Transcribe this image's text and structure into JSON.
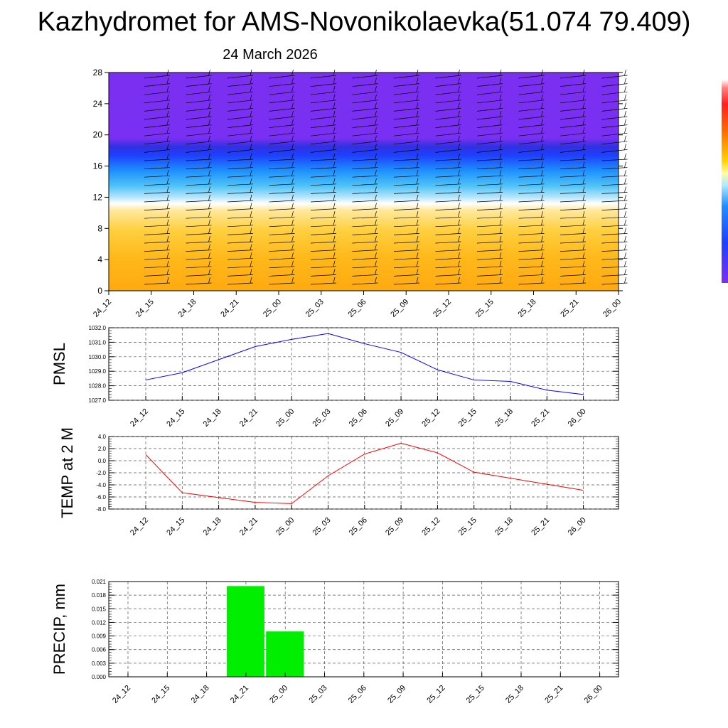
{
  "title": "Kazhydromet for AMS-Novonikolaevka(51.074 79.409)",
  "subtitle": "24 March 2026",
  "colors": {
    "pmsl_line": "#0000ff",
    "temp_line": "#ff0000",
    "precip_bar": "#00ee00",
    "cross_section_top": "#8a2be2",
    "cross_section_mid": "#1e90ff",
    "cross_section_bottom": "#ffa500"
  },
  "chart_data": [
    {
      "type": "heatmap",
      "name": "vertical cross-section with wind barbs",
      "title": "",
      "xlabel": "",
      "ylabel": "",
      "x_ticks": [
        "24_12",
        "24_15",
        "24_18",
        "24_21",
        "25_00",
        "25_03",
        "25_06",
        "25_09",
        "25_12",
        "25_15",
        "25_18",
        "25_21",
        "26_00"
      ],
      "y_ticks": [
        "0",
        "4",
        "8",
        "12",
        "16",
        "20",
        "24",
        "28"
      ],
      "ylim": [
        0,
        28
      ],
      "bands": [
        {
          "from": 0,
          "to": 10.5,
          "color": "#ffa500"
        },
        {
          "from": 10.5,
          "to": 12,
          "color": "#fff3c0"
        },
        {
          "from": 12,
          "to": 18.5,
          "color": "#1e90ff"
        },
        {
          "from": 18.5,
          "to": 28,
          "color": "#8a2be2"
        }
      ],
      "wind_barbs": true
    },
    {
      "type": "line",
      "ylabel": "PMSL",
      "x": [
        "24_12",
        "24_15",
        "24_18",
        "24_21",
        "25_00",
        "25_03",
        "25_06",
        "25_09",
        "25_12",
        "25_15",
        "25_18",
        "25_21",
        "26_00"
      ],
      "y_ticks": [
        "1027.0",
        "1028.0",
        "1029.0",
        "1030.0",
        "1031.0",
        "1032.0"
      ],
      "ylim": [
        1027.0,
        1032.0
      ],
      "series": [
        {
          "values": [
            1028.4,
            1028.9,
            1029.8,
            1030.7,
            1031.2,
            1031.6,
            1030.9,
            1030.3,
            1029.1,
            1028.4,
            1028.3,
            1027.7,
            1027.4
          ]
        }
      ]
    },
    {
      "type": "line",
      "ylabel": "TEMP at 2 M",
      "x": [
        "24_12",
        "24_15",
        "24_18",
        "24_21",
        "25_00",
        "25_03",
        "25_06",
        "25_09",
        "25_12",
        "25_15",
        "25_18",
        "25_21",
        "26_00"
      ],
      "y_ticks": [
        "4.0",
        "2.0",
        "0.0",
        "-2.0",
        "-4.0",
        "-6.0",
        "-8.0"
      ],
      "ylim": [
        -8.0,
        4.0
      ],
      "series": [
        {
          "values": [
            1.0,
            -5.3,
            -6.1,
            -6.9,
            -7.1,
            -2.5,
            1.1,
            2.9,
            1.3,
            -1.9,
            -2.9,
            -3.9,
            -4.9
          ]
        }
      ]
    },
    {
      "type": "bar",
      "ylabel": "PRECIP, mm",
      "categories": [
        "24_12",
        "24_15",
        "24_18",
        "24_21",
        "25_00",
        "25_03",
        "25_06",
        "25_09",
        "25_12",
        "25_15",
        "25_18",
        "25_21",
        "26_00"
      ],
      "values": [
        0,
        0,
        0,
        0.02,
        0.01,
        0,
        0,
        0,
        0,
        0,
        0,
        0,
        0
      ],
      "y_ticks": [
        "0.000",
        "0.003",
        "0.006",
        "0.009",
        "0.012",
        "0.015",
        "0.018",
        "0.021"
      ],
      "ylim": [
        0,
        0.021
      ]
    }
  ]
}
